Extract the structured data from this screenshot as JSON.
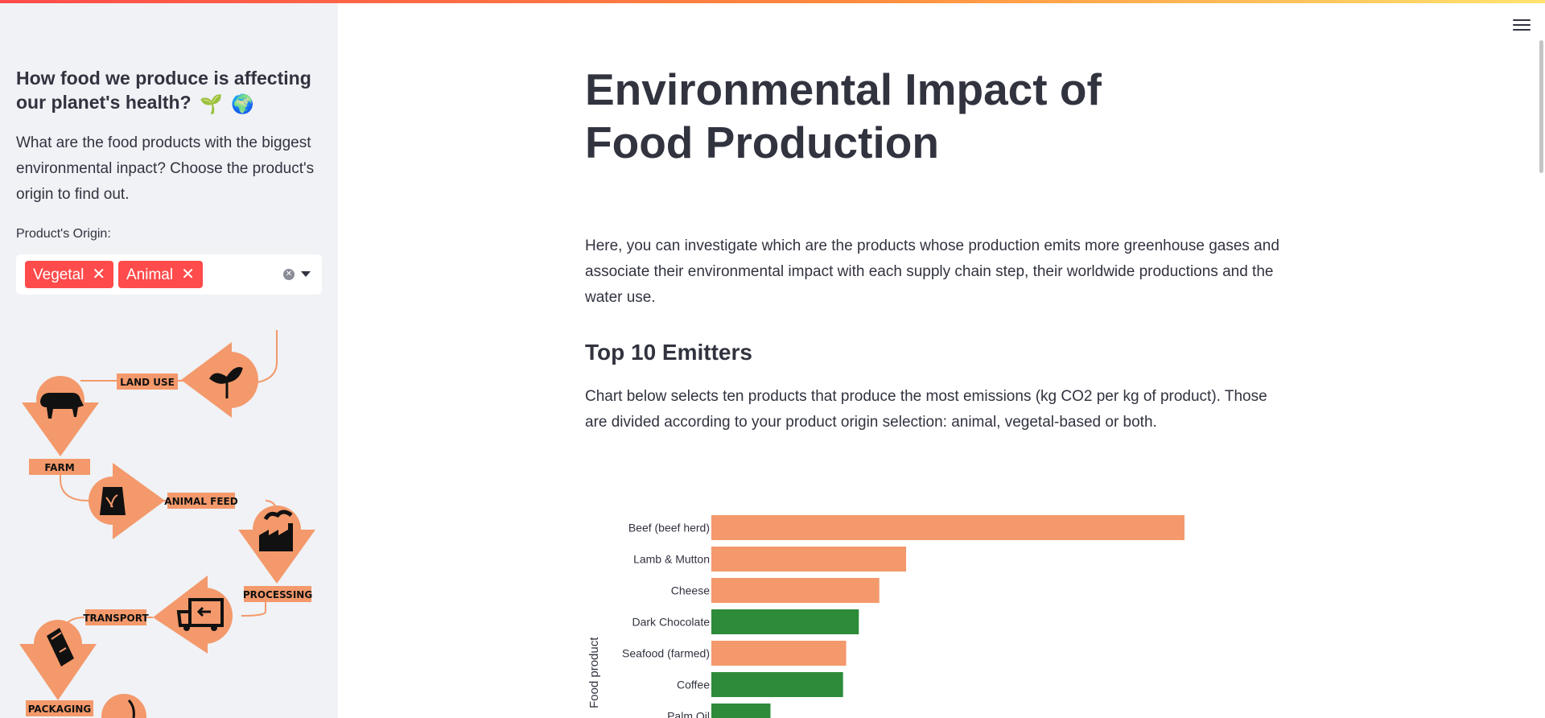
{
  "sidebar": {
    "title": "How food we produce is affecting our planet's health?",
    "title_emoji": [
      "🌱",
      "🌍"
    ],
    "description": "What are the food products with the biggest environmental inpact? Choose the product's origin to find out.",
    "origin_label": "Product's Origin:",
    "origin_tags": [
      "Vegetal",
      "Animal"
    ],
    "tag_remove_glyph": "✕",
    "flow_steps": [
      "LAND USE",
      "FARM",
      "ANIMAL FEED",
      "PROCESSING",
      "TRANSPORT",
      "PACKAGING"
    ]
  },
  "main": {
    "title": "Environmental Impact of Food Production",
    "intro": "Here, you can investigate which are the products whose production emits more greenhouse gases and associate their environmental impact with each supply chain step, their worldwide productions and the water use.",
    "section_title": "Top 10 Emitters",
    "section_desc": "Chart below selects ten products that produce the most emissions (kg CO2 per kg of product). Those are divided according to your product origin selection: animal, vegetal-based or both."
  },
  "colors": {
    "accent": "#ff4b4b",
    "animal": "#f4996b",
    "vegetal": "#2e8b3a",
    "sidebar_bg": "#f0f2f6"
  },
  "chart_data": {
    "type": "bar",
    "orientation": "horizontal",
    "ylabel": "Food product",
    "categories": [
      "Beef (beef herd)",
      "Lamb & Mutton",
      "Cheese",
      "Dark Chocolate",
      "Seafood (farmed)",
      "Coffee",
      "Palm Oil"
    ],
    "values": [
      60,
      24.7,
      21.3,
      18.7,
      17.1,
      16.7,
      7.5
    ],
    "origin": [
      "animal",
      "animal",
      "animal",
      "vegetal",
      "animal",
      "vegetal",
      "vegetal"
    ],
    "xlim": [
      0,
      70
    ]
  }
}
